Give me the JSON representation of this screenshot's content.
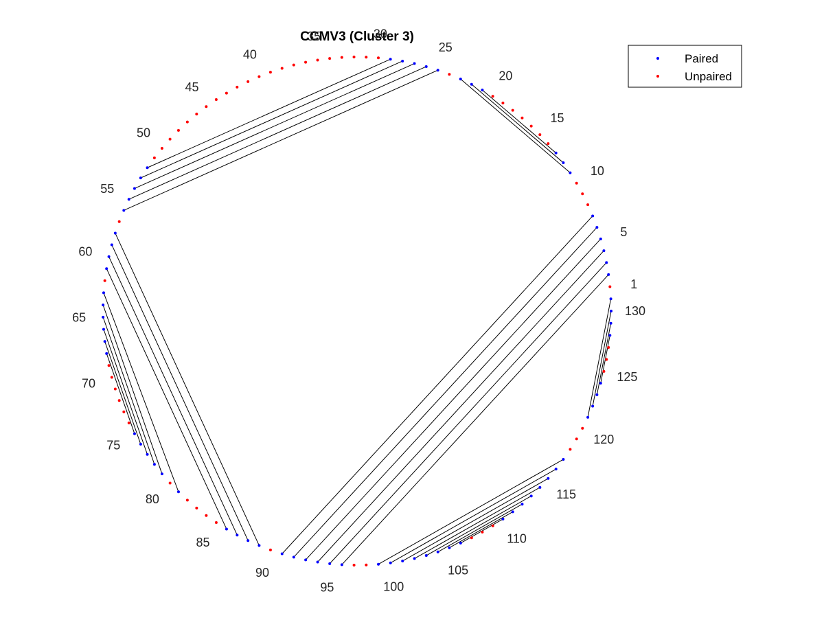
{
  "chart_data": {
    "type": "arc-diagram",
    "title": "CCMV3 (Cluster 3)",
    "n_nucleotides": 131,
    "tick_labels": [
      1,
      5,
      10,
      15,
      20,
      25,
      30,
      35,
      40,
      45,
      50,
      55,
      60,
      65,
      70,
      75,
      80,
      85,
      90,
      95,
      100,
      105,
      110,
      115,
      120,
      125,
      130
    ],
    "pairs": [
      [
        2,
        96
      ],
      [
        3,
        95
      ],
      [
        4,
        94
      ],
      [
        5,
        93
      ],
      [
        6,
        92
      ],
      [
        7,
        91
      ],
      [
        11,
        23
      ],
      [
        12,
        22
      ],
      [
        13,
        21
      ],
      [
        25,
        56
      ],
      [
        26,
        55
      ],
      [
        27,
        54
      ],
      [
        28,
        53
      ],
      [
        29,
        52
      ],
      [
        58,
        89
      ],
      [
        59,
        88
      ],
      [
        60,
        87
      ],
      [
        61,
        86
      ],
      [
        63,
        81
      ],
      [
        64,
        79
      ],
      [
        65,
        78
      ],
      [
        66,
        77
      ],
      [
        67,
        76
      ],
      [
        68,
        75
      ],
      [
        99,
        117
      ],
      [
        100,
        116
      ],
      [
        101,
        115
      ],
      [
        102,
        114
      ],
      [
        103,
        113
      ],
      [
        104,
        112
      ],
      [
        105,
        111
      ],
      [
        106,
        110
      ],
      [
        121,
        131
      ],
      [
        122,
        130
      ],
      [
        123,
        129
      ],
      [
        124,
        128
      ]
    ],
    "series": [
      {
        "name": "Paired",
        "color": "#0000ff"
      },
      {
        "name": "Unpaired",
        "color": "#ff0000"
      }
    ],
    "pair_line_color": "#000000"
  }
}
